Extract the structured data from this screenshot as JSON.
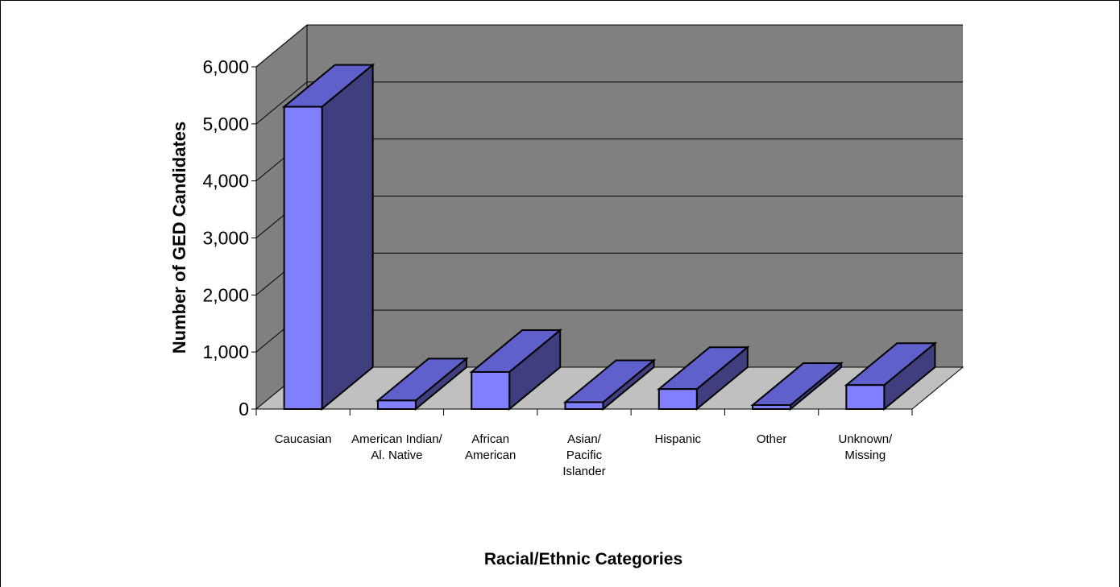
{
  "chart_data": {
    "type": "bar",
    "style": "3d",
    "title": "",
    "xlabel": "Racial/Ethnic Categories",
    "ylabel": "Number of GED Candidates",
    "ylim": [
      0,
      6000
    ],
    "y_ticks": [
      "0",
      "1,000",
      "2,000",
      "3,000",
      "4,000",
      "5,000",
      "6,000"
    ],
    "categories": [
      [
        "Caucasian"
      ],
      [
        "American Indian/",
        "Al. Native"
      ],
      [
        "African",
        "American"
      ],
      [
        "Asian/",
        "Pacific",
        "Islander"
      ],
      [
        "Hispanic"
      ],
      [
        "Other"
      ],
      [
        "Unknown/",
        "Missing"
      ]
    ],
    "values": [
      5300,
      150,
      650,
      120,
      350,
      70,
      420
    ],
    "grid": true,
    "legend": "none",
    "colors": {
      "bar_front": "#8080ff",
      "bar_top": "#6060cc",
      "bar_side": "#3f3f7f",
      "wall": "#808080",
      "floor": "#c0c0c0"
    }
  }
}
